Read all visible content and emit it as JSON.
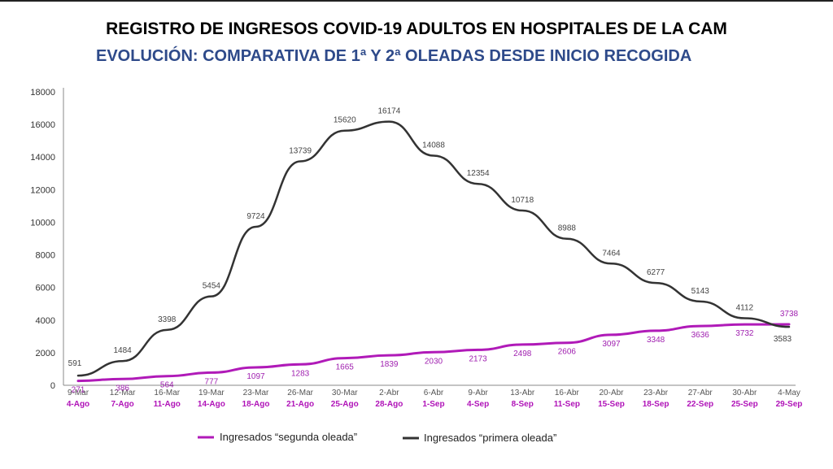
{
  "title": "REGISTRO DE INGRESOS COVID-19 ADULTOS  EN HOSPITALES DE LA CAM",
  "subtitle": "EVOLUCIÓN: COMPARATIVA DE 1ª Y 2ª OLEADAS DESDE INICIO RECOGIDA",
  "colors": {
    "primera": "#333333",
    "segunda": "#b01ab8",
    "subtitle": "#2e4a8a"
  },
  "chart_data": {
    "type": "line",
    "title": "",
    "xlabel": "",
    "ylabel": "",
    "ylim": [
      0,
      18000
    ],
    "yticks": [
      0,
      2000,
      4000,
      6000,
      8000,
      10000,
      12000,
      14000,
      16000,
      18000
    ],
    "grid": false,
    "legend_position": "bottom",
    "categories_primera": [
      "9-Mar",
      "12-Mar",
      "16-Mar",
      "19-Mar",
      "23-Mar",
      "26-Mar",
      "30-Mar",
      "2-Abr",
      "6-Abr",
      "9-Abr",
      "13-Abr",
      "16-Abr",
      "20-Abr",
      "23-Abr",
      "27-Abr",
      "30-Abr",
      "4-May"
    ],
    "categories_segunda": [
      "4-Ago",
      "7-Ago",
      "11-Ago",
      "14-Ago",
      "18-Ago",
      "21-Ago",
      "25-Ago",
      "28-Ago",
      "1-Sep",
      "4-Sep",
      "8-Sep",
      "11-Sep",
      "15-Sep",
      "18-Sep",
      "22-Sep",
      "25-Sep",
      "29-Sep"
    ],
    "series": [
      {
        "name": "Ingresados “segunda oleada”",
        "key": "segunda",
        "values": [
          271,
          386,
          564,
          777,
          1097,
          1283,
          1665,
          1839,
          2030,
          2173,
          2498,
          2606,
          3097,
          3348,
          3636,
          3732,
          3738
        ]
      },
      {
        "name": "Ingresados “primera oleada”",
        "key": "primera",
        "values": [
          591,
          1484,
          3398,
          5454,
          9724,
          13739,
          15620,
          16174,
          14088,
          12354,
          10718,
          8988,
          7464,
          6277,
          5143,
          4112,
          3583
        ]
      }
    ]
  }
}
